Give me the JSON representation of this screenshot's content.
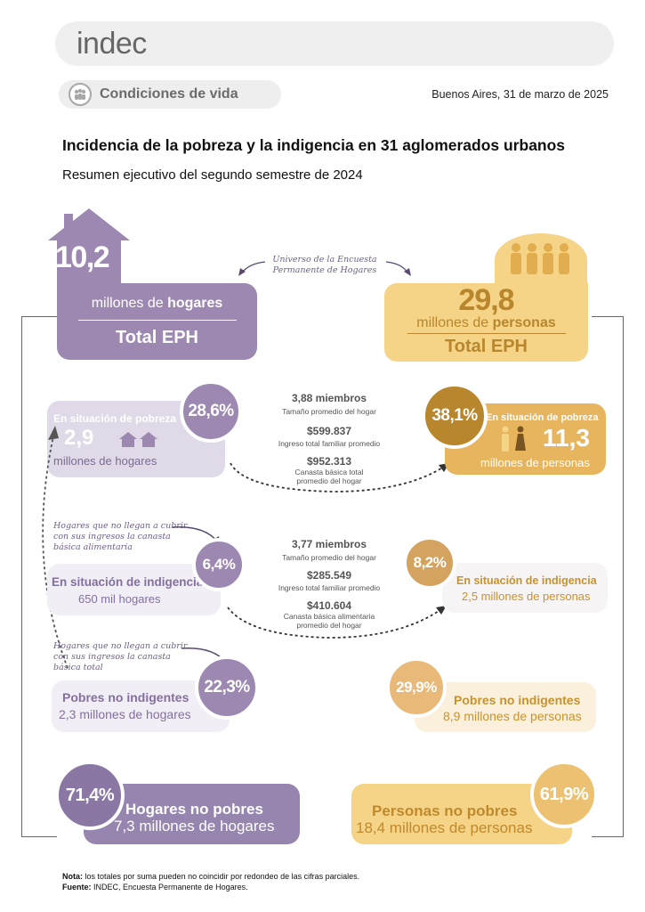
{
  "header": {
    "logo": "indec",
    "section": "Condiciones de vida",
    "date": "Buenos Aires, 31 de marzo de 2025"
  },
  "title": "Incidencia de la pobreza y la indigencia en 31 aglomerados urbanos",
  "subtitle": "Resumen ejecutivo del segundo semestre de 2024",
  "universe_note": "Universo de la Encuesta Permanente de Hogares",
  "hogares": {
    "total_value": "10,2",
    "total_label_prefix": "millones de ",
    "total_label_strong": "hogares",
    "total_tag": "Total EPH",
    "pobreza_label": "En situación de pobreza",
    "pobreza_pct": "28,6%",
    "pobreza_value": "2,9",
    "pobreza_unit": "millones de hogares",
    "note_alimentaria": "Hogares que no llegan a cubrir con sus ingresos la canasta básica alimentaria",
    "indigencia_label": "En situación de indigencia",
    "indigencia_pct": "6,4%",
    "indigencia_value": "650 mil hogares",
    "note_total": "Hogares que no llegan a cubrir con sus ingresos la canasta básica total",
    "no_indigentes_label": "Pobres no indigentes",
    "no_indigentes_pct": "22,3%",
    "no_indigentes_value": "2,3 millones de hogares",
    "no_pobres_pct": "71,4%",
    "no_pobres_label": "Hogares no pobres",
    "no_pobres_value": "7,3 millones de hogares"
  },
  "personas": {
    "total_value": "29,8",
    "total_label_prefix": "millones de ",
    "total_label_strong": "personas",
    "total_tag": "Total EPH",
    "pobreza_pct": "38,1%",
    "pobreza_label": "En situación de pobreza",
    "pobreza_value": "11,3",
    "pobreza_unit": "millones de personas",
    "indigencia_pct": "8,2%",
    "indigencia_label": "En situación de indigencia",
    "indigencia_value": "2,5 millones de personas",
    "no_indigentes_pct": "29,9%",
    "no_indigentes_label": "Pobres no indigentes",
    "no_indigentes_value": "8,9 millones de personas",
    "no_pobres_label": "Personas no pobres",
    "no_pobres_value": "18,4 millones de personas",
    "no_pobres_pct": "61,9%"
  },
  "pobreza_stats": {
    "miembros": "3,88 miembros",
    "miembros_label": "Tamaño promedio del hogar",
    "ingreso": "$599.837",
    "ingreso_label": "Ingreso total familiar promedio",
    "canasta": "$952.313",
    "canasta_label": "Canasta básica total promedio del hogar"
  },
  "indigencia_stats": {
    "miembros": "3,77 miembros",
    "miembros_label": "Tamaño promedio del hogar",
    "ingreso": "$285.549",
    "ingreso_label": "Ingreso total familiar promedio",
    "canasta": "$410.604",
    "canasta_label": "Canasta básica alimentaria promedio del hogar"
  },
  "footer": {
    "nota_label": "Nota:",
    "nota_text": " los totales por suma pueden no coincidir por redondeo de las cifras parciales.",
    "fuente_label": "Fuente:",
    "fuente_text": " INDEC, Encuesta Permanente de Hogares."
  },
  "colors": {
    "purple": "#9d88b2",
    "gold": "#f5d387",
    "gold_dark": "#b8862d"
  }
}
